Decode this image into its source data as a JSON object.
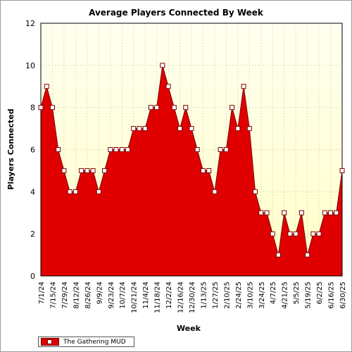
{
  "chart_data": {
    "type": "area",
    "title": "Average Players Connected By Week",
    "xlabel": "Week",
    "ylabel": "Players Connected",
    "ylim": [
      0,
      12
    ],
    "y_ticks": [
      0,
      2,
      4,
      6,
      8,
      10,
      12
    ],
    "grid": true,
    "legend_position": "bottom-left",
    "colors": {
      "fill": "#e00000",
      "stroke": "#7a0000",
      "plot_bg_top": "#fffff0",
      "plot_bg_bottom": "#ffffc8",
      "grid": "#c8c8a0"
    },
    "x_tick_labels": [
      "7/1/24",
      "7/15/24",
      "7/29/24",
      "8/12/24",
      "8/26/24",
      "9/9/24",
      "9/23/24",
      "10/7/24",
      "10/21/24",
      "11/4/24",
      "11/18/24",
      "12/2/24",
      "12/16/24",
      "12/30/24",
      "1/13/25",
      "1/27/25",
      "2/10/25",
      "2/24/25",
      "3/10/25",
      "3/24/25",
      "4/7/25",
      "4/21/25",
      "5/5/25",
      "5/19/25",
      "6/2/25",
      "6/16/25",
      "6/30/25"
    ],
    "series": [
      {
        "name": "The Gathering MUD",
        "values": [
          8,
          9,
          8,
          6,
          5,
          4,
          4,
          5,
          5,
          5,
          4,
          5,
          6,
          6,
          6,
          6,
          7,
          7,
          7,
          8,
          8,
          10,
          9,
          8,
          7,
          8,
          7,
          6,
          5,
          5,
          4,
          6,
          6,
          8,
          7,
          9,
          7,
          4,
          3,
          3,
          2,
          1,
          3,
          2,
          2,
          3,
          1,
          2,
          2,
          3,
          3,
          3,
          5
        ]
      }
    ]
  }
}
